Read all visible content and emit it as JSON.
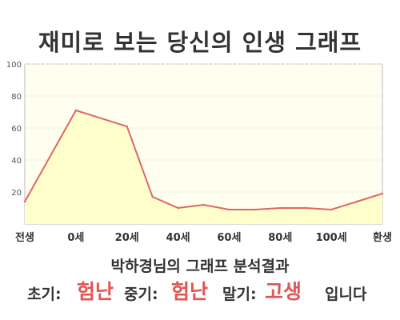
{
  "title": "재미로 보는 당신의 인생 그래프",
  "subtitle": "박하경님의 그래프 분석결과",
  "result": {
    "early_label": "초기:",
    "early_value": "험난",
    "mid_label": "중기:",
    "mid_value": "험난",
    "late_label": "말기:",
    "late_value": "고생",
    "suffix": "입니다"
  },
  "colors": {
    "line": "#e06666",
    "area": "#ffffcc",
    "plot_bg": "#fffff0",
    "accent_text": "#e05555"
  },
  "chart_data": {
    "type": "area",
    "title": "재미로 보는 당신의 인생 그래프",
    "xlabel": "",
    "ylabel": "",
    "x_tick_labels": [
      "전생",
      "0세",
      "20세",
      "40세",
      "60세",
      "80세",
      "100세",
      "환생"
    ],
    "y_ticks": [
      20,
      40,
      60,
      80,
      100
    ],
    "ylim": [
      0,
      100
    ],
    "grid": true,
    "series": [
      {
        "x": [
          -1,
          0,
          1,
          1.5,
          2,
          2.5,
          3,
          3.5,
          4,
          4.5,
          5,
          5.5,
          6
        ],
        "values": [
          14,
          71,
          61,
          17,
          10,
          12,
          9,
          9,
          10,
          10,
          9,
          14,
          19
        ]
      }
    ],
    "x_labels_x": [
      -1,
      0,
      1,
      2,
      3,
      4,
      5,
      6
    ]
  }
}
